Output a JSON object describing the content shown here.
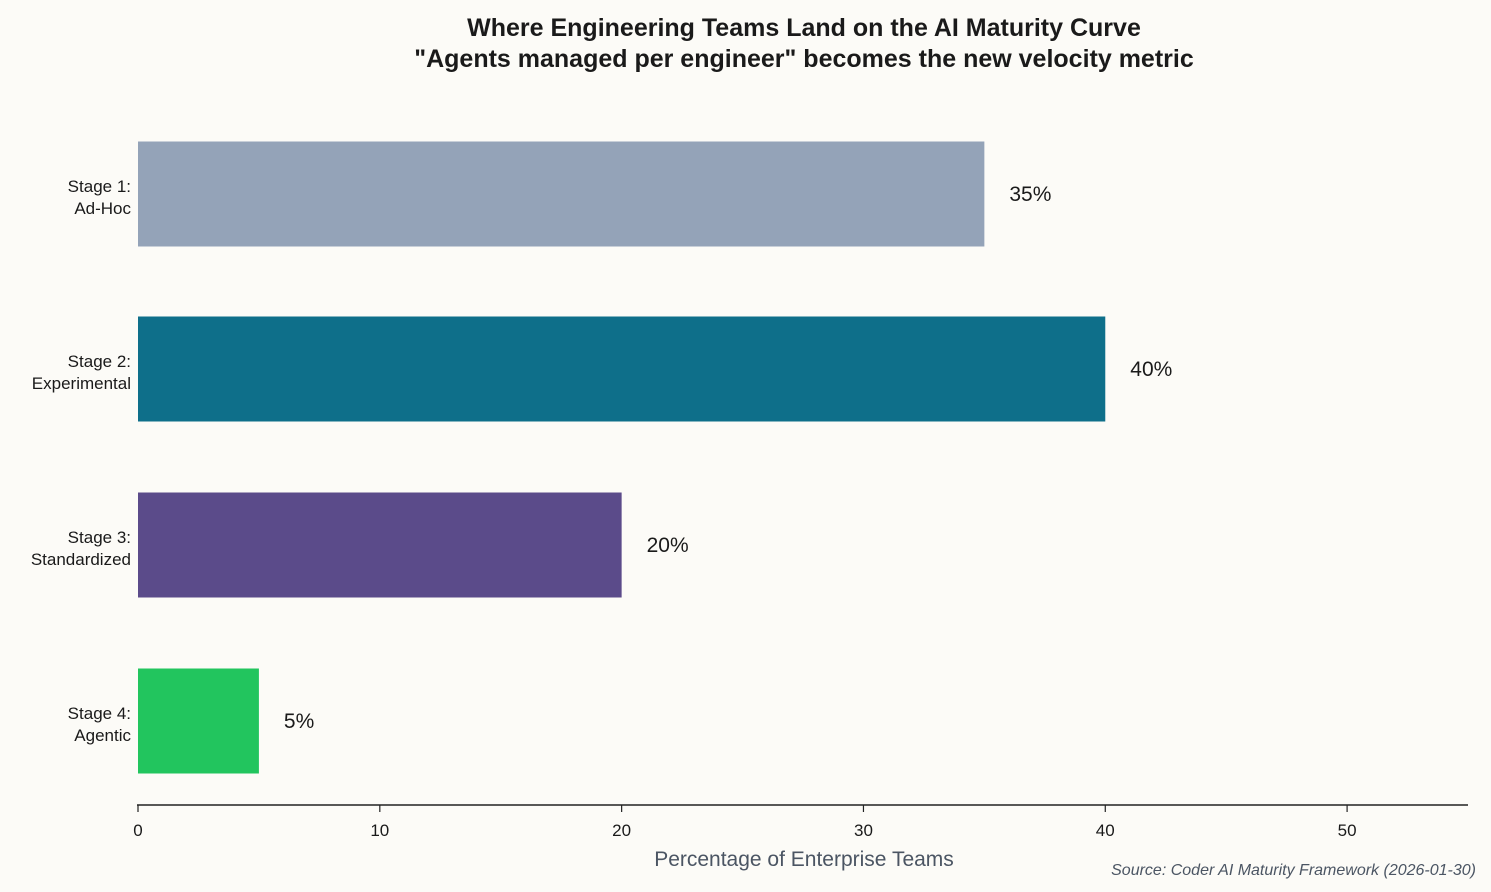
{
  "chart_data": {
    "type": "bar",
    "orientation": "horizontal",
    "title": "Where Engineering Teams Land on the AI Maturity Curve",
    "subtitle": "\"Agents managed per engineer\" becomes the new velocity metric",
    "categories": [
      [
        "Stage 1:",
        "Ad-Hoc"
      ],
      [
        "Stage 2:",
        "Experimental"
      ],
      [
        "Stage 3:",
        "Standardized"
      ],
      [
        "Stage 4:",
        "Agentic"
      ]
    ],
    "values": [
      35,
      40,
      20,
      5
    ],
    "data_labels": [
      "35%",
      "40%",
      "20%",
      "5%"
    ],
    "colors": [
      "#94a3b8",
      "#0e6f8a",
      "#5b4b8a",
      "#22c55e"
    ],
    "xlabel": "Percentage of Enterprise Teams",
    "ylabel": "",
    "xlim": [
      0,
      55
    ],
    "xticks": [
      0,
      10,
      20,
      30,
      40,
      50
    ],
    "grid": false,
    "source": "Source: Coder AI Maturity Framework (2026-01-30)"
  }
}
